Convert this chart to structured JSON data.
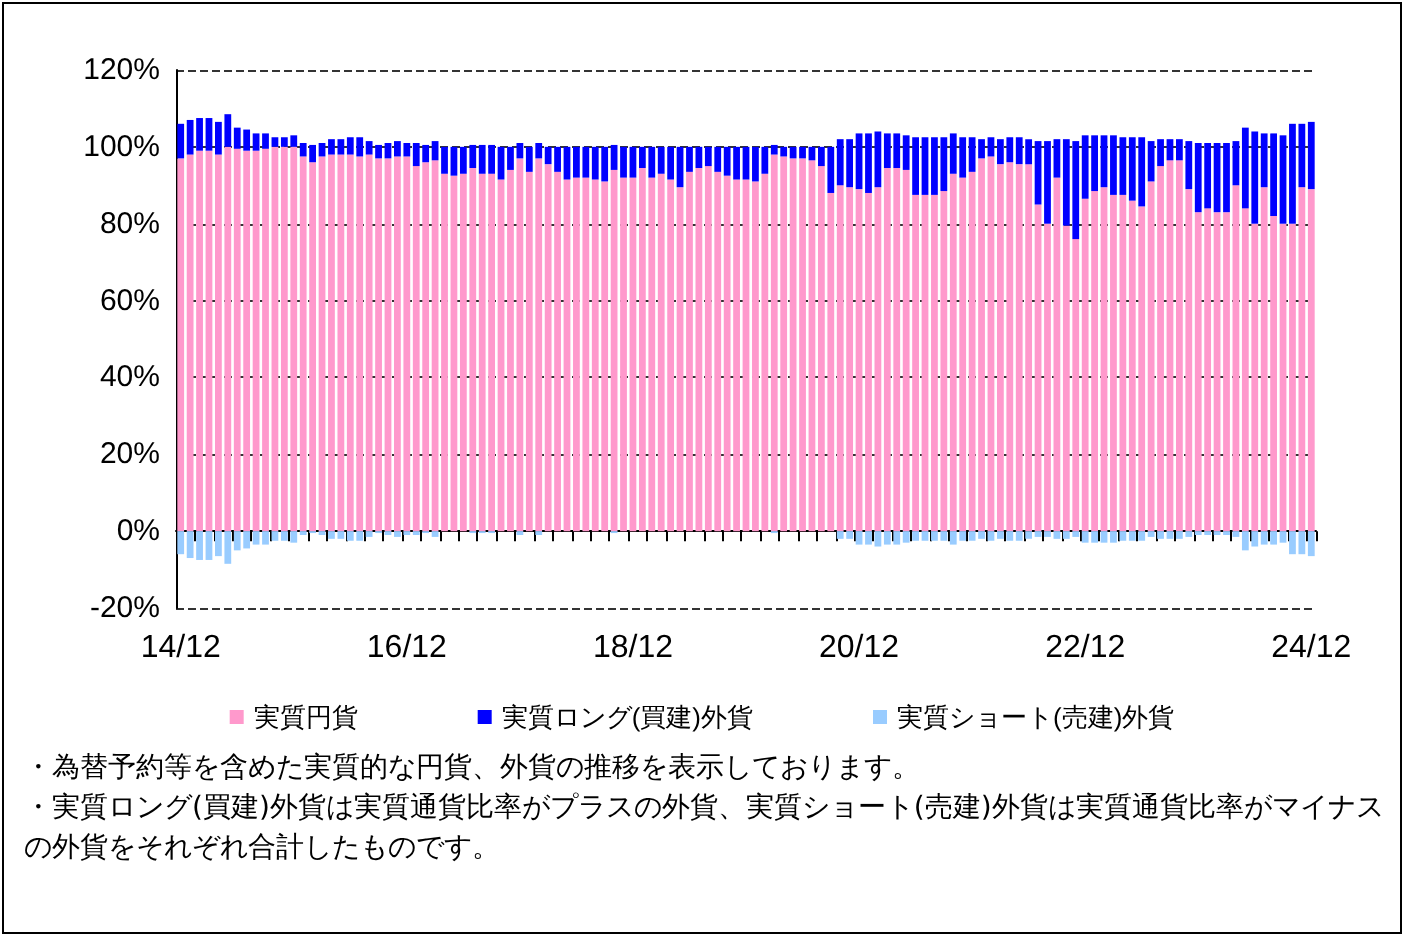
{
  "chart_data": {
    "type": "bar",
    "stacked": true,
    "categories": [
      "14/12",
      null,
      null,
      null,
      null,
      null,
      null,
      null,
      null,
      null,
      null,
      null,
      null,
      null,
      null,
      null,
      null,
      null,
      null,
      null,
      null,
      null,
      null,
      null,
      "16/12",
      null,
      null,
      null,
      null,
      null,
      null,
      null,
      null,
      null,
      null,
      null,
      null,
      null,
      null,
      null,
      null,
      null,
      null,
      null,
      null,
      null,
      null,
      null,
      "18/12",
      null,
      null,
      null,
      null,
      null,
      null,
      null,
      null,
      null,
      null,
      null,
      null,
      null,
      null,
      null,
      null,
      null,
      null,
      null,
      null,
      null,
      null,
      null,
      "20/12",
      null,
      null,
      null,
      null,
      null,
      null,
      null,
      null,
      null,
      null,
      null,
      null,
      null,
      null,
      null,
      null,
      null,
      null,
      null,
      null,
      null,
      null,
      null,
      "22/12",
      null,
      null,
      null,
      null,
      null,
      null,
      null,
      null,
      null,
      null,
      null,
      null,
      null,
      null,
      null,
      null,
      null,
      null,
      null,
      null,
      null,
      null,
      null,
      "24/12"
    ],
    "series": [
      {
        "name": "実質円貨",
        "color": "#ff99cc",
        "values": [
          97,
          98,
          99,
          99,
          98,
          100,
          99.5,
          99,
          99,
          99.5,
          100,
          100,
          100,
          97.5,
          96,
          97.5,
          98,
          98,
          98,
          97.5,
          98,
          97,
          97,
          97.5,
          97.5,
          95,
          96,
          96.5,
          93,
          92.5,
          93,
          94.5,
          93,
          93,
          91.5,
          94,
          97,
          93.5,
          97,
          95.5,
          93.5,
          91.5,
          92,
          92,
          91.5,
          91,
          94,
          92,
          92,
          94.5,
          92,
          93,
          91.5,
          89.5,
          93.5,
          94.5,
          95,
          93.5,
          92.5,
          91.5,
          91.5,
          91,
          93,
          98,
          97.5,
          97,
          97,
          96.5,
          95,
          88,
          90,
          89.5,
          89,
          88,
          89.5,
          94.5,
          94.5,
          94,
          87.5,
          87.5,
          87.5,
          88.5,
          93,
          92,
          93.5,
          97,
          97.5,
          95.5,
          96,
          95.5,
          95.5,
          85,
          80,
          92,
          79.5,
          76,
          86.5,
          88.5,
          89.5,
          87.5,
          87.5,
          86,
          84.5,
          91,
          95,
          96.5,
          96.5,
          89,
          83,
          84,
          83,
          83,
          90,
          84,
          80,
          89.5,
          82,
          80,
          80,
          89.5,
          89
        ]
      },
      {
        "name": "実質ロング(買建)外貨",
        "color": "#0000ff",
        "values": [
          9,
          9,
          8.5,
          8.5,
          8.5,
          8.5,
          5.5,
          5.5,
          4.5,
          4,
          2.5,
          2.5,
          3,
          3.5,
          4.5,
          3.5,
          4,
          4,
          4.5,
          5,
          3.5,
          3.5,
          4,
          4,
          3.5,
          6,
          4.5,
          5,
          7,
          7.5,
          7,
          6,
          7.5,
          7.5,
          8.5,
          6,
          4,
          6.5,
          4,
          4.5,
          6.5,
          8.5,
          8,
          8,
          8.5,
          9,
          6.5,
          8,
          8,
          5.5,
          8,
          7,
          8.5,
          10.5,
          6.5,
          5.5,
          5,
          6.5,
          7.5,
          8.5,
          8.5,
          9,
          7,
          2.5,
          2.5,
          3,
          3,
          3.5,
          5,
          12,
          12,
          12.5,
          14.5,
          15.5,
          14.5,
          9,
          9,
          9,
          15,
          15,
          15,
          14,
          10.5,
          10.5,
          9,
          5,
          5,
          6.5,
          6.5,
          7,
          6.5,
          16.5,
          21.5,
          10,
          22.5,
          25.5,
          16.5,
          14.5,
          13.5,
          15.5,
          15,
          16.5,
          18,
          10.5,
          7,
          5.5,
          5.5,
          12.5,
          18,
          17,
          18,
          18,
          11.5,
          21,
          24,
          14,
          21.5,
          23,
          26,
          16.5,
          17.5
        ]
      },
      {
        "name": "実質ショート(売建)外貨",
        "color": "#99ccff",
        "values": [
          -6,
          -7,
          -7.5,
          -7.5,
          -6.5,
          -8.5,
          -5,
          -4.5,
          -3.5,
          -3.5,
          -2.5,
          -2.5,
          -3,
          -1,
          -0.5,
          -1,
          -2,
          -2,
          -2.5,
          -2.5,
          -1.5,
          -0.5,
          -1,
          -1.5,
          -1,
          -1,
          -0.5,
          -1.5,
          0,
          0,
          0,
          -0.5,
          -0.5,
          -0.5,
          0,
          0,
          -1,
          0,
          -1,
          0,
          0,
          0,
          0,
          0,
          0,
          0,
          -0.5,
          0,
          0,
          0,
          0,
          0,
          0,
          0,
          0,
          0,
          0,
          0,
          0,
          0,
          0,
          0,
          0,
          -0.5,
          0,
          0,
          0,
          0,
          0,
          0,
          -2,
          -2,
          -3.5,
          -3.5,
          -4,
          -3.5,
          -3.5,
          -3,
          -2.5,
          -2.5,
          -2.5,
          -2.5,
          -3.5,
          -2.5,
          -2.5,
          -2,
          -2.5,
          -2,
          -2.5,
          -2.5,
          -2,
          -1.5,
          -1.5,
          -2,
          -2,
          -1.5,
          -3,
          -3,
          -3,
          -3,
          -2.5,
          -2.5,
          -2.5,
          -1.5,
          -2,
          -2,
          -2,
          -1.5,
          -1,
          -1,
          -1,
          -1,
          -1.5,
          -5,
          -4,
          -3.5,
          -3.5,
          -3,
          -6,
          -6,
          -6.5
        ]
      }
    ],
    "ylim": [
      -20,
      120
    ],
    "yticks": [
      {
        "value": -20,
        "label": "-20%"
      },
      {
        "value": 0,
        "label": "0%"
      },
      {
        "value": 20,
        "label": "20%"
      },
      {
        "value": 40,
        "label": "40%"
      },
      {
        "value": 60,
        "label": "60%"
      },
      {
        "value": 80,
        "label": "80%"
      },
      {
        "value": 100,
        "label": "100%"
      },
      {
        "value": 120,
        "label": "120%"
      }
    ],
    "grid": "y",
    "legend": "bottom",
    "annotations": [
      "・為替予約等を含めた実質的な円貨、外貨の推移を表示しております。",
      "・実質ロング(買建)外貨は実質通貨比率がプラスの外貨、実質ショート(売建)外貨は実質通貨比率がマイナスの外貨をそれぞれ合計したものです。"
    ]
  }
}
